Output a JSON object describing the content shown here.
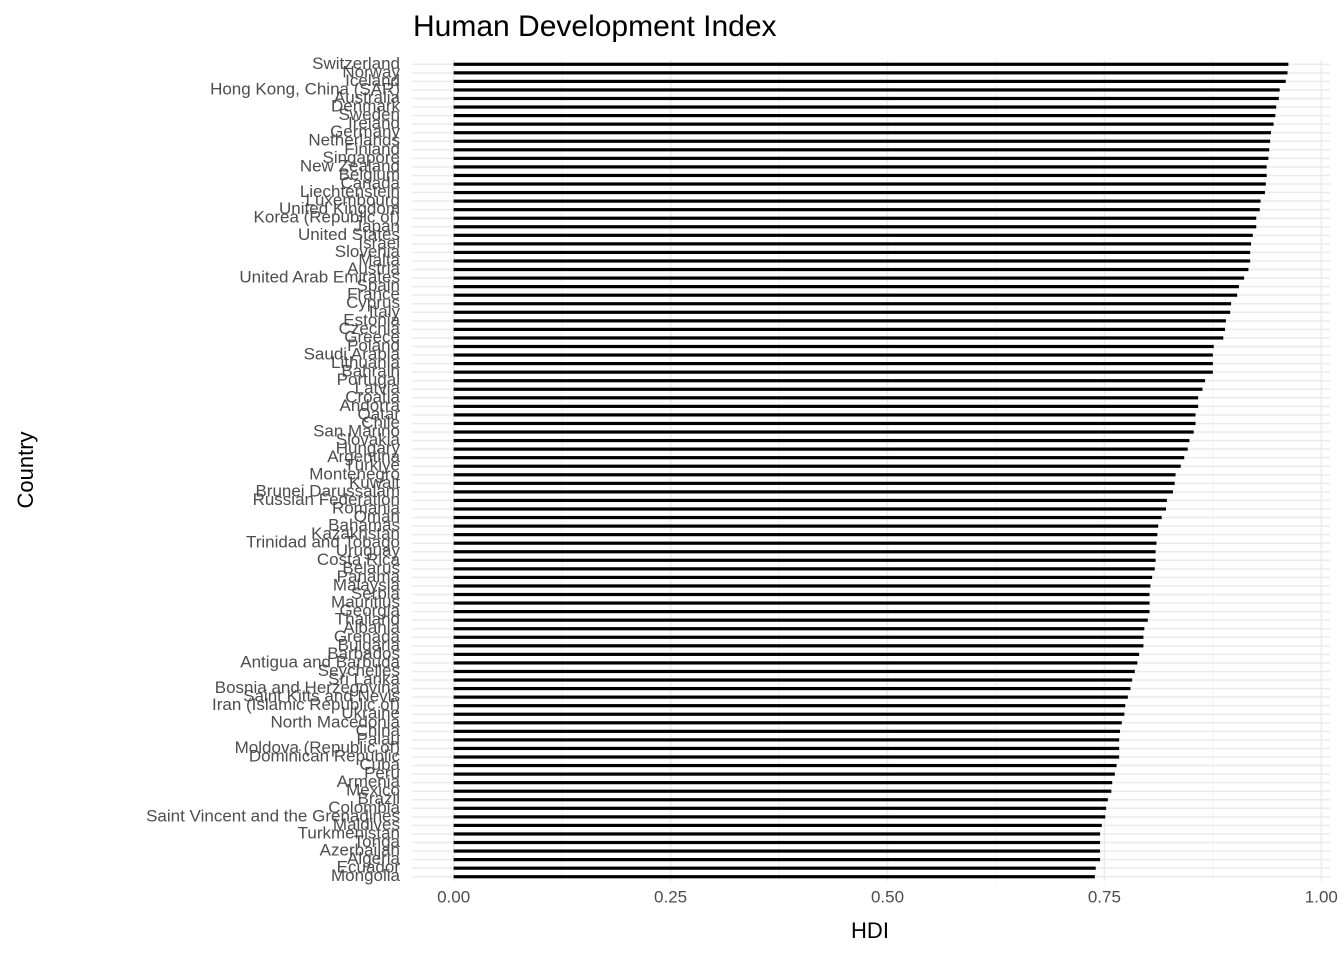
{
  "chart_data": {
    "type": "barh",
    "title": "Human Development Index",
    "x_label": "HDI",
    "y_label": "Country",
    "categories": [
      "Switzerland",
      "Norway",
      "Iceland",
      "Hong Kong, China (SAR)",
      "Australia",
      "Denmark",
      "Sweden",
      "Ireland",
      "Germany",
      "Netherlands",
      "Finland",
      "Singapore",
      "New Zealand",
      "Belgium",
      "Canada",
      "Liechtenstein",
      "Luxembourg",
      "United Kingdom",
      "Korea (Republic of)",
      "Japan",
      "United States",
      "Israel",
      "Slovenia",
      "Malta",
      "Austria",
      "United Arab Emirates",
      "Spain",
      "France",
      "Cyprus",
      "Italy",
      "Estonia",
      "Czechia",
      "Greece",
      "Poland",
      "Saudi Arabia",
      "Lithuania",
      "Bahrain",
      "Portugal",
      "Latvia",
      "Croatia",
      "Andorra",
      "Qatar",
      "Chile",
      "San Marino",
      "Slovakia",
      "Hungary",
      "Argentina",
      "Türkiye",
      "Montenegro",
      "Kuwait",
      "Brunei Darussalam",
      "Russian Federation",
      "Romania",
      "Oman",
      "Bahamas",
      "Kazakhstan",
      "Trinidad and Tobago",
      "Uruguay",
      "Costa Rica",
      "Belarus",
      "Panama",
      "Malaysia",
      "Serbia",
      "Mauritius",
      "Georgia",
      "Thailand",
      "Albania",
      "Grenada",
      "Bulgaria",
      "Barbados",
      "Antigua and Barbuda",
      "Seychelles",
      "Sri Lanka",
      "Bosnia and Herzegovina",
      "Saint Kitts and Nevis",
      "Iran (Islamic Republic of)",
      "Ukraine",
      "North Macedonia",
      "China",
      "Palau",
      "Moldova (Republic of)",
      "Dominican Republic",
      "Cuba",
      "Peru",
      "Armenia",
      "Mexico",
      "Brazil",
      "Colombia",
      "Saint Vincent and the Grenadines",
      "Maldives",
      "Turkmenistan",
      "Tonga",
      "Azerbaijan",
      "Algeria",
      "Ecuador",
      "Mongolia"
    ],
    "values": [
      0.962,
      0.961,
      0.959,
      0.952,
      0.951,
      0.948,
      0.947,
      0.945,
      0.942,
      0.941,
      0.94,
      0.939,
      0.937,
      0.937,
      0.936,
      0.935,
      0.93,
      0.929,
      0.925,
      0.925,
      0.921,
      0.919,
      0.918,
      0.918,
      0.916,
      0.911,
      0.905,
      0.903,
      0.896,
      0.895,
      0.89,
      0.889,
      0.887,
      0.876,
      0.875,
      0.875,
      0.875,
      0.866,
      0.863,
      0.858,
      0.858,
      0.855,
      0.855,
      0.853,
      0.848,
      0.846,
      0.842,
      0.838,
      0.832,
      0.831,
      0.829,
      0.822,
      0.821,
      0.816,
      0.812,
      0.811,
      0.81,
      0.809,
      0.809,
      0.808,
      0.805,
      0.803,
      0.802,
      0.802,
      0.802,
      0.8,
      0.796,
      0.795,
      0.795,
      0.79,
      0.788,
      0.785,
      0.782,
      0.78,
      0.777,
      0.774,
      0.773,
      0.77,
      0.768,
      0.767,
      0.767,
      0.767,
      0.764,
      0.762,
      0.759,
      0.758,
      0.754,
      0.752,
      0.751,
      0.747,
      0.745,
      0.745,
      0.745,
      0.745,
      0.74,
      0.739
    ],
    "color": "#000000",
    "xlim": [
      -0.048,
      1.01
    ],
    "xticks": [
      {
        "value": 0,
        "label": "0.00"
      },
      {
        "value": 0.25,
        "label": "0.25"
      },
      {
        "value": 0.5,
        "label": "0.50"
      },
      {
        "value": 0.75,
        "label": "0.75"
      },
      {
        "value": 1,
        "label": "1.00"
      }
    ],
    "grid": true
  }
}
